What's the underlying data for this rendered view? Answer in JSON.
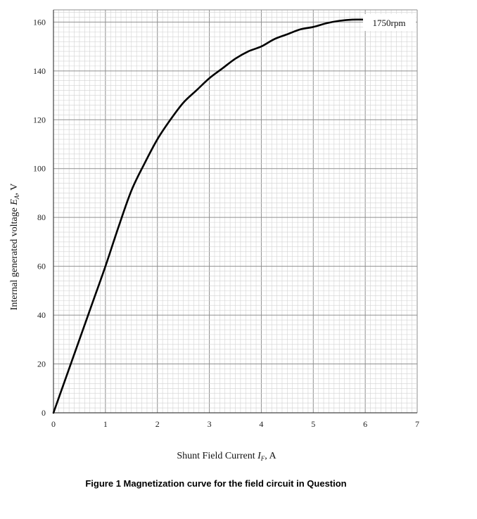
{
  "chart_data": {
    "type": "line",
    "title": "",
    "xlabel": "Shunt Field Current",
    "xlabel_symbol": "I",
    "xlabel_subscript": "F",
    "xlabel_unit": ", A",
    "ylabel": "Internal generated voltage",
    "ylabel_symbol": "E",
    "ylabel_subscript": "A",
    "ylabel_unit": ", V",
    "xlim": [
      0,
      7
    ],
    "ylim": [
      0,
      165
    ],
    "xticks": [
      0,
      1,
      2,
      3,
      4,
      5,
      6,
      7
    ],
    "yticks": [
      0,
      20,
      40,
      60,
      80,
      100,
      120,
      140,
      160
    ],
    "grid": true,
    "series": [
      {
        "name": "1750rpm",
        "color": "#000000",
        "x": [
          0,
          0.25,
          0.5,
          0.75,
          1.0,
          1.25,
          1.5,
          1.75,
          2.0,
          2.25,
          2.5,
          2.75,
          3.0,
          3.25,
          3.5,
          3.75,
          4.0,
          4.25,
          4.5,
          4.75,
          5.0,
          5.25,
          5.5,
          5.75,
          6.0,
          6.25,
          6.5
        ],
        "y": [
          0,
          15,
          30,
          45,
          60,
          76,
          91,
          102,
          112,
          120,
          127,
          132,
          137,
          141,
          145,
          148,
          150,
          153,
          155,
          157,
          158,
          159.5,
          160.5,
          161,
          161,
          161,
          161.5
        ]
      }
    ]
  },
  "caption": "Figure 1 Magnetization curve for the field circuit in Question"
}
